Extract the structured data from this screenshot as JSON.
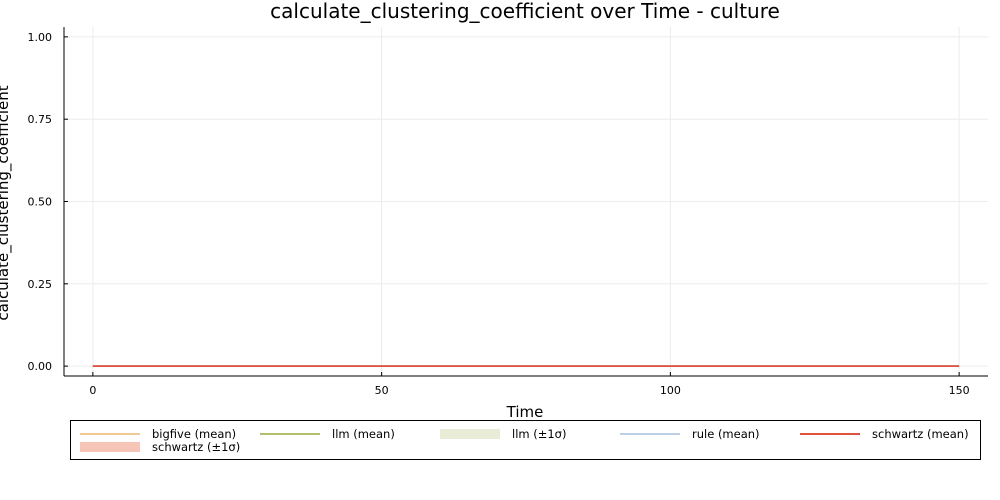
{
  "chart_data": {
    "type": "line",
    "title": "calculate_clustering_coefficient over Time - culture",
    "xlabel": "Time",
    "ylabel": "calculate_clustering_coefficient",
    "xlim": [
      -5,
      155
    ],
    "ylim": [
      -0.03,
      1.03
    ],
    "x_ticks": [
      0,
      50,
      100,
      150
    ],
    "y_ticks": [
      0.0,
      0.25,
      0.5,
      0.75,
      1.0
    ],
    "x_tick_labels": [
      "0",
      "50",
      "100",
      "150"
    ],
    "y_tick_labels": [
      "0.00",
      "0.25",
      "0.50",
      "0.75",
      "1.00"
    ],
    "grid": true,
    "legend_position": "bottom (outside plot)",
    "series": [
      {
        "name": "bigfive (mean)",
        "kind": "line",
        "color": "#f1c995",
        "x": [
          0,
          150
        ],
        "y": [
          0,
          0
        ]
      },
      {
        "name": "llm (mean)",
        "kind": "line",
        "color": "#b5bf6e",
        "x": [
          0,
          150
        ],
        "y": [
          0,
          0
        ]
      },
      {
        "name": "llm (±1σ)",
        "kind": "band",
        "color": "#e9ecd6",
        "x": [
          0,
          150
        ],
        "lower": [
          0,
          0
        ],
        "upper": [
          0,
          0
        ]
      },
      {
        "name": "rule (mean)",
        "kind": "line",
        "color": "#bdd0e8",
        "x": [
          0,
          150
        ],
        "y": [
          0,
          0
        ]
      },
      {
        "name": "schwartz (mean)",
        "kind": "line",
        "color": "#e0523d",
        "x": [
          0,
          150
        ],
        "y": [
          0,
          0
        ]
      },
      {
        "name": "schwartz (±1σ)",
        "kind": "band",
        "color": "#f7c4b8",
        "x": [
          0,
          150
        ],
        "lower": [
          0,
          0
        ],
        "upper": [
          0,
          0
        ]
      }
    ]
  }
}
